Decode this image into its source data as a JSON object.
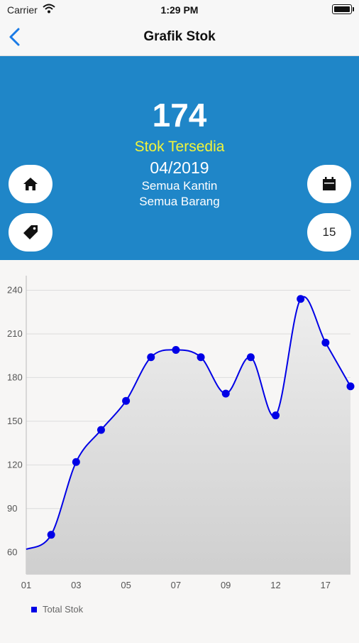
{
  "status_bar": {
    "carrier": "Carrier",
    "time": "1:29 PM"
  },
  "nav": {
    "title": "Grafik Stok"
  },
  "summary": {
    "stock_value": "174",
    "stock_label": "Stok Tersedia",
    "period": "04/2019",
    "kantin": "Semua Kantin",
    "barang": "Semua Barang",
    "count_badge": "15"
  },
  "colors": {
    "hero": "#1f86c8",
    "label_yellow": "#f2f43a",
    "series": "#0000e6"
  },
  "icons": {
    "back": "chevron-left-icon",
    "home": "home-icon",
    "tag": "tag-icon",
    "calendar": "calendar-icon"
  },
  "legend": {
    "label": "Total Stok"
  },
  "chart_data": {
    "type": "area",
    "x_tick_labels": [
      "01",
      "03",
      "05",
      "07",
      "09",
      "12",
      "17"
    ],
    "y_ticks": [
      60,
      90,
      120,
      150,
      180,
      210,
      240
    ],
    "ylim": [
      45,
      250
    ],
    "grid": true,
    "legend_position": "bottom-left",
    "series": [
      {
        "name": "Total Stok",
        "values": [
          62,
          72,
          122,
          144,
          164,
          194,
          199,
          194,
          169,
          194,
          154,
          234,
          204,
          174
        ]
      }
    ]
  }
}
